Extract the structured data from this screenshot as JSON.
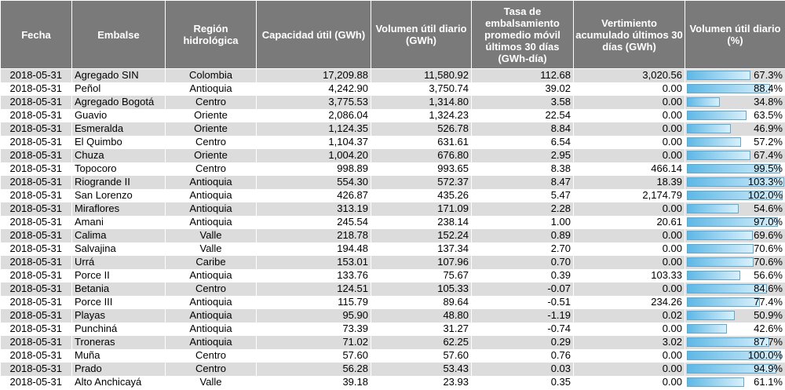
{
  "headers": {
    "fecha": "Fecha",
    "embalse": "Embalse",
    "region": "Región hidrológica",
    "capacidad": "Capacidad útil (GWh)",
    "volumen": "Volumen útil diario (GWh)",
    "tasa": "Tasa de embalsamiento promedio móvil últimos 30 días (GWh-día)",
    "vertimiento": "Vertimiento acumulado últimos 30 días (GWh)",
    "pct": "Volumen útil diario (%)"
  },
  "rows": [
    {
      "fecha": "2018-05-31",
      "embalse": "Agregado SIN",
      "region": "Colombia",
      "capacidad": "17,209.88",
      "volumen": "11,580.92",
      "tasa": "112.68",
      "vertimiento": "3,020.56",
      "pct": "67.3%",
      "pct_value": 67.3
    },
    {
      "fecha": "2018-05-31",
      "embalse": "Peñol",
      "region": "Antioquia",
      "capacidad": "4,242.90",
      "volumen": "3,750.74",
      "tasa": "39.02",
      "vertimiento": "0.00",
      "pct": "88.4%",
      "pct_value": 88.4
    },
    {
      "fecha": "2018-05-31",
      "embalse": "Agregado Bogotá",
      "region": "Centro",
      "capacidad": "3,775.53",
      "volumen": "1,314.80",
      "tasa": "3.58",
      "vertimiento": "0.00",
      "pct": "34.8%",
      "pct_value": 34.8
    },
    {
      "fecha": "2018-05-31",
      "embalse": "Guavio",
      "region": "Oriente",
      "capacidad": "2,086.04",
      "volumen": "1,324.23",
      "tasa": "22.54",
      "vertimiento": "0.00",
      "pct": "63.5%",
      "pct_value": 63.5
    },
    {
      "fecha": "2018-05-31",
      "embalse": "Esmeralda",
      "region": "Oriente",
      "capacidad": "1,124.35",
      "volumen": "526.78",
      "tasa": "8.84",
      "vertimiento": "0.00",
      "pct": "46.9%",
      "pct_value": 46.9
    },
    {
      "fecha": "2018-05-31",
      "embalse": "El Quimbo",
      "region": "Centro",
      "capacidad": "1,104.37",
      "volumen": "631.61",
      "tasa": "6.54",
      "vertimiento": "0.00",
      "pct": "57.2%",
      "pct_value": 57.2
    },
    {
      "fecha": "2018-05-31",
      "embalse": "Chuza",
      "region": "Oriente",
      "capacidad": "1,004.20",
      "volumen": "676.80",
      "tasa": "2.95",
      "vertimiento": "0.00",
      "pct": "67.4%",
      "pct_value": 67.4
    },
    {
      "fecha": "2018-05-31",
      "embalse": "Topocoro",
      "region": "Centro",
      "capacidad": "998.89",
      "volumen": "993.65",
      "tasa": "8.38",
      "vertimiento": "466.14",
      "pct": "99.5%",
      "pct_value": 99.5
    },
    {
      "fecha": "2018-05-31",
      "embalse": "Riogrande II",
      "region": "Antioquia",
      "capacidad": "554.30",
      "volumen": "572.37",
      "tasa": "8.47",
      "vertimiento": "18.39",
      "pct": "103.3%",
      "pct_value": 103.3
    },
    {
      "fecha": "2018-05-31",
      "embalse": "San Lorenzo",
      "region": "Antioquia",
      "capacidad": "426.87",
      "volumen": "435.26",
      "tasa": "5.47",
      "vertimiento": "2,174.79",
      "pct": "102.0%",
      "pct_value": 102.0
    },
    {
      "fecha": "2018-05-31",
      "embalse": "Miraflores",
      "region": "Antioquia",
      "capacidad": "313.19",
      "volumen": "171.09",
      "tasa": "2.28",
      "vertimiento": "0.00",
      "pct": "54.6%",
      "pct_value": 54.6
    },
    {
      "fecha": "2018-05-31",
      "embalse": "Amani",
      "region": "Antioquia",
      "capacidad": "245.54",
      "volumen": "238.14",
      "tasa": "1.00",
      "vertimiento": "20.61",
      "pct": "97.0%",
      "pct_value": 97.0
    },
    {
      "fecha": "2018-05-31",
      "embalse": "Calima",
      "region": "Valle",
      "capacidad": "218.78",
      "volumen": "152.24",
      "tasa": "0.89",
      "vertimiento": "0.00",
      "pct": "69.6%",
      "pct_value": 69.6
    },
    {
      "fecha": "2018-05-31",
      "embalse": "Salvajina",
      "region": "Valle",
      "capacidad": "194.48",
      "volumen": "137.34",
      "tasa": "2.70",
      "vertimiento": "0.00",
      "pct": "70.6%",
      "pct_value": 70.6
    },
    {
      "fecha": "2018-05-31",
      "embalse": "Urrá",
      "region": "Caribe",
      "capacidad": "153.01",
      "volumen": "107.96",
      "tasa": "0.70",
      "vertimiento": "0.00",
      "pct": "70.6%",
      "pct_value": 70.6
    },
    {
      "fecha": "2018-05-31",
      "embalse": "Porce II",
      "region": "Antioquia",
      "capacidad": "133.76",
      "volumen": "75.67",
      "tasa": "0.39",
      "vertimiento": "103.33",
      "pct": "56.6%",
      "pct_value": 56.6
    },
    {
      "fecha": "2018-05-31",
      "embalse": "Betania",
      "region": "Centro",
      "capacidad": "124.51",
      "volumen": "105.33",
      "tasa": "-0.07",
      "vertimiento": "0.00",
      "pct": "84.6%",
      "pct_value": 84.6
    },
    {
      "fecha": "2018-05-31",
      "embalse": "Porce III",
      "region": "Antioquia",
      "capacidad": "115.79",
      "volumen": "89.64",
      "tasa": "-0.51",
      "vertimiento": "234.26",
      "pct": "77.4%",
      "pct_value": 77.4
    },
    {
      "fecha": "2018-05-31",
      "embalse": "Playas",
      "region": "Antioquia",
      "capacidad": "95.90",
      "volumen": "48.80",
      "tasa": "-1.19",
      "vertimiento": "0.02",
      "pct": "50.9%",
      "pct_value": 50.9
    },
    {
      "fecha": "2018-05-31",
      "embalse": "Punchiná",
      "region": "Antioquia",
      "capacidad": "73.39",
      "volumen": "31.27",
      "tasa": "-0.74",
      "vertimiento": "0.00",
      "pct": "42.6%",
      "pct_value": 42.6
    },
    {
      "fecha": "2018-05-31",
      "embalse": "Troneras",
      "region": "Antioquia",
      "capacidad": "71.02",
      "volumen": "62.25",
      "tasa": "0.29",
      "vertimiento": "3.02",
      "pct": "87.7%",
      "pct_value": 87.7
    },
    {
      "fecha": "2018-05-31",
      "embalse": "Muña",
      "region": "Centro",
      "capacidad": "57.60",
      "volumen": "57.60",
      "tasa": "0.76",
      "vertimiento": "0.00",
      "pct": "100.0%",
      "pct_value": 100.0
    },
    {
      "fecha": "2018-05-31",
      "embalse": "Prado",
      "region": "Centro",
      "capacidad": "56.28",
      "volumen": "53.43",
      "tasa": "0.03",
      "vertimiento": "0.00",
      "pct": "94.9%",
      "pct_value": 94.9
    },
    {
      "fecha": "2018-05-31",
      "embalse": "Alto Anchicayá",
      "region": "Valle",
      "capacidad": "39.18",
      "volumen": "23.93",
      "tasa": "0.35",
      "vertimiento": "0.00",
      "pct": "61.1%",
      "pct_value": 61.1
    }
  ]
}
